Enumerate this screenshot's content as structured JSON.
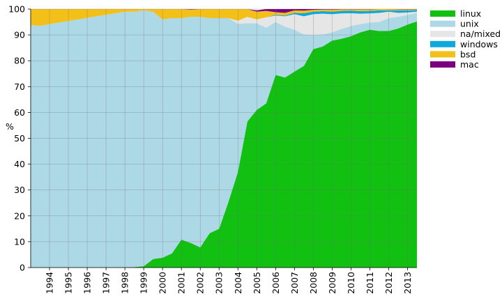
{
  "chart_data": {
    "type": "area",
    "stacked": true,
    "title": "",
    "xlabel": "",
    "ylabel": "%",
    "xlim": [
      1993.0,
      2013.5
    ],
    "ylim": [
      0,
      100
    ],
    "x_ticks": [
      1994,
      1995,
      1996,
      1997,
      1998,
      1999,
      2000,
      2001,
      2002,
      2003,
      2004,
      2005,
      2006,
      2007,
      2008,
      2009,
      2010,
      2011,
      2012,
      2013
    ],
    "y_ticks": [
      0,
      10,
      20,
      30,
      40,
      50,
      60,
      70,
      80,
      90,
      100
    ],
    "grid": true,
    "legend_position": "top-right",
    "x": [
      1993.0,
      1993.5,
      1994.0,
      1994.5,
      1995.0,
      1995.5,
      1996.0,
      1996.5,
      1997.0,
      1997.5,
      1998.0,
      1998.5,
      1999.0,
      1999.5,
      2000.0,
      2000.5,
      2001.0,
      2001.5,
      2002.0,
      2002.5,
      2003.0,
      2003.5,
      2004.0,
      2004.5,
      2005.0,
      2005.5,
      2006.0,
      2006.5,
      2007.0,
      2007.5,
      2008.0,
      2008.5,
      2009.0,
      2009.5,
      2010.0,
      2010.5,
      2011.0,
      2011.5,
      2012.0,
      2012.5,
      2013.0,
      2013.5
    ],
    "series": [
      {
        "name": "linux",
        "color": "#12c012",
        "values": [
          0,
          0,
          0,
          0,
          0,
          0,
          0,
          0,
          0,
          0,
          0,
          0.2,
          0.5,
          3.3,
          3.8,
          5.5,
          10.8,
          9.5,
          7.8,
          13.3,
          15.0,
          25.5,
          37.0,
          56.5,
          61.0,
          63.5,
          74.5,
          73.5,
          75.8,
          78.0,
          84.5,
          85.5,
          87.8,
          88.5,
          89.5,
          91.0,
          92.0,
          91.5,
          91.5,
          92.5,
          94.0,
          95.2
        ]
      },
      {
        "name": "unix",
        "color": "#add8e6",
        "values": [
          93.8,
          93.5,
          94.2,
          94.8,
          95.4,
          96.0,
          96.6,
          97.2,
          97.8,
          98.4,
          99.0,
          98.8,
          99.0,
          95.7,
          92.2,
          91.0,
          85.7,
          87.5,
          89.2,
          83.2,
          81.5,
          71.0,
          57.3,
          38.0,
          33.5,
          29.3,
          20.5,
          19.7,
          16.2,
          12.2,
          5.5,
          4.7,
          3.2,
          3.8,
          3.9,
          3.2,
          2.8,
          3.5,
          5.0,
          4.5,
          3.7,
          3.3
        ]
      },
      {
        "name": "na/mixed",
        "color": "#e6e6e6",
        "values": [
          0,
          0,
          0,
          0,
          0,
          0,
          0,
          0,
          0,
          0,
          0,
          0,
          0,
          0,
          0,
          0,
          0,
          0,
          0,
          0,
          0,
          0,
          1.2,
          2.5,
          1.5,
          4.0,
          2.5,
          4.0,
          6.0,
          7.0,
          8.0,
          8.0,
          7.0,
          6.0,
          5.0,
          4.0,
          3.5,
          3.5,
          2.5,
          1.5,
          1.0,
          0.5
        ]
      },
      {
        "name": "windows",
        "color": "#0ea8dc",
        "values": [
          0,
          0,
          0,
          0,
          0,
          0,
          0,
          0,
          0,
          0,
          0,
          0,
          0,
          0,
          0,
          0,
          0,
          0,
          0,
          0,
          0,
          0,
          0,
          0,
          0,
          0,
          0.3,
          0.3,
          0.5,
          1.2,
          1.0,
          1.0,
          1.0,
          1.0,
          1.0,
          1.0,
          1.0,
          1.0,
          0.5,
          1.0,
          0.8,
          0.6
        ]
      },
      {
        "name": "bsd",
        "color": "#f2c018",
        "values": [
          6.2,
          6.5,
          5.8,
          5.2,
          4.6,
          4.0,
          3.4,
          2.8,
          2.2,
          1.6,
          1.0,
          1.0,
          0.5,
          1.0,
          4.0,
          3.5,
          3.5,
          2.8,
          3.0,
          3.5,
          3.5,
          3.5,
          4.5,
          3.0,
          3.0,
          2.5,
          1.0,
          1.0,
          1.0,
          1.0,
          0.7,
          0.6,
          0.8,
          0.6,
          0.5,
          0.7,
          0.6,
          0.5,
          0.5,
          0.4,
          0.4,
          0.3
        ]
      },
      {
        "name": "mac",
        "color": "#7a0080",
        "values": [
          0,
          0,
          0,
          0,
          0,
          0,
          0,
          0,
          0,
          0,
          0,
          0,
          0,
          0,
          0,
          0,
          0,
          0.2,
          0,
          0,
          0,
          0,
          0,
          0,
          0.5,
          0.7,
          1.2,
          1.5,
          0.5,
          0.6,
          0.3,
          0.2,
          0.2,
          0.1,
          0.1,
          0.1,
          0.1,
          0,
          0,
          0.1,
          0.1,
          0.1
        ]
      }
    ]
  }
}
